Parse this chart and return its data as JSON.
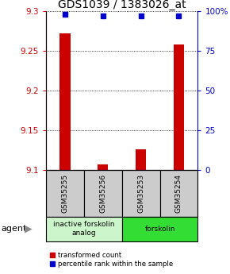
{
  "title": "GDS1039 / 1383026_at",
  "samples": [
    "GSM35255",
    "GSM35256",
    "GSM35253",
    "GSM35254"
  ],
  "transformed_counts": [
    9.272,
    9.107,
    9.126,
    9.258
  ],
  "percentile_ranks": [
    98,
    97,
    97,
    97
  ],
  "ylim_left": [
    9.1,
    9.3
  ],
  "yticks_left": [
    9.1,
    9.15,
    9.2,
    9.25,
    9.3
  ],
  "yticks_right": [
    0,
    25,
    50,
    75,
    100
  ],
  "groups": [
    {
      "label": "inactive forskolin\nanalog",
      "color": "#ccf5cc",
      "samples": [
        0,
        1
      ]
    },
    {
      "label": "forskolin",
      "color": "#33dd33",
      "samples": [
        2,
        3
      ]
    }
  ],
  "bar_color": "#cc0000",
  "dot_color": "#0000cc",
  "sample_box_color": "#cccccc",
  "title_fontsize": 10,
  "tick_fontsize": 7.5,
  "sample_fontsize": 6.5,
  "group_fontsize": 6.5,
  "legend_fontsize": 6.2,
  "agent_fontsize": 8
}
